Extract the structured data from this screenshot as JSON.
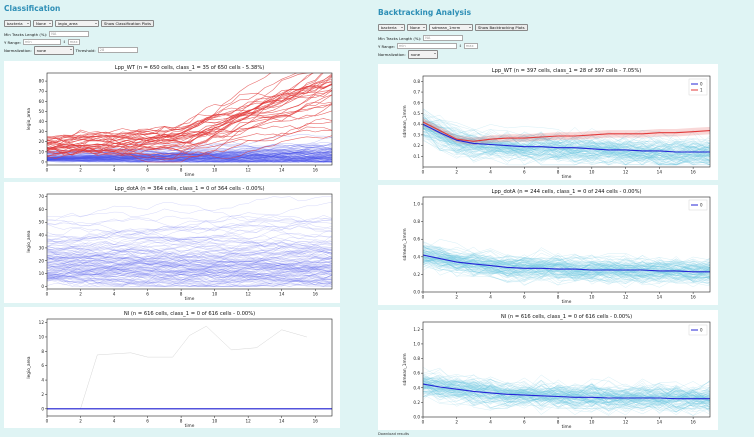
{
  "colors": {
    "background": "#dff4f4",
    "title": "#2e8fb6",
    "class0_light": "#4a52e8",
    "class1": "#e23a3a",
    "cyan": "#6cc6e0",
    "mean": "#2222cc"
  },
  "classification": {
    "title": "Classification",
    "selects": [
      "bacteria",
      "None",
      "legio_area"
    ],
    "show_button": "Show Classification Plots",
    "min_tracks_label": "Min Tracks Length (%):",
    "min_tracks_value": "NA",
    "yrange_label": "Y Range:",
    "yrange_min": "min",
    "yrange_max": "max",
    "normalization_label": "Normalization:",
    "normalization_value": "none",
    "threshold_label": "Threshold:",
    "threshold_value": "28"
  },
  "backtracking": {
    "title": "Backtracking Analysis",
    "selects": [
      "bacteria",
      "None",
      "sdmean_1mrm"
    ],
    "show_button": "Show Backtracking Plots",
    "min_tracks_label": "Min Tracks Length (%):",
    "min_tracks_value": "NA",
    "yrange_label": "Y Range:",
    "yrange_min": "min",
    "yrange_max": "max",
    "normalization_label": "Normalization:",
    "normalization_value": "none",
    "footer": "Download results"
  },
  "chart_data": [
    {
      "type": "line",
      "title": "Lpp_WT (n = 650 cells, class_1 = 35 of 650 cells - 5.38%)",
      "xlabel": "time",
      "ylabel": "legio_area",
      "xlim": [
        0,
        17
      ],
      "ylim": [
        -3,
        88
      ],
      "xticks": [
        0,
        2,
        4,
        6,
        8,
        10,
        12,
        14,
        16
      ],
      "yticks": [
        0,
        10,
        20,
        30,
        40,
        50,
        60,
        70,
        80
      ],
      "series": [
        {
          "name": "class_0",
          "count": 615
        },
        {
          "name": "class_1",
          "count": 35
        }
      ]
    },
    {
      "type": "line",
      "title": "Lpp_dotA (n = 364 cells, class_1 = 0 of 364 cells - 0.00%)",
      "xlabel": "time",
      "ylabel": "legio_area",
      "xlim": [
        0,
        17
      ],
      "ylim": [
        -2,
        72
      ],
      "xticks": [
        0,
        2,
        4,
        6,
        8,
        10,
        12,
        14,
        16
      ],
      "yticks": [
        0,
        10,
        20,
        30,
        40,
        50,
        60,
        70
      ],
      "series": [
        {
          "name": "class_0",
          "count": 364
        }
      ]
    },
    {
      "type": "line",
      "title": "NI (n = 616 cells, class_1 = 0 of 616 cells - 0.00%)",
      "xlabel": "time",
      "ylabel": "legio_area",
      "xlim": [
        0,
        17
      ],
      "ylim": [
        -1,
        12.5
      ],
      "xticks": [
        0,
        2,
        4,
        6,
        8,
        10,
        12,
        14,
        16
      ],
      "yticks": [
        0,
        2,
        4,
        6,
        8,
        10,
        12
      ],
      "series": [
        {
          "name": "class_0",
          "count": 616
        }
      ],
      "outlier": {
        "x": [
          2,
          3,
          5,
          6,
          7.5,
          8.5,
          9.5,
          11,
          12.5,
          14,
          15.5
        ],
        "y": [
          0,
          7.5,
          7.8,
          7.2,
          7.2,
          10.2,
          11.5,
          8.2,
          8.5,
          11,
          10
        ]
      }
    },
    {
      "type": "line",
      "title": "Lpp_WT (n = 397 cells, class_1 = 28 of 397 cells - 7.05%)",
      "xlabel": "time",
      "ylabel": "sdmean_1mrm",
      "xlim": [
        0,
        17
      ],
      "ylim": [
        0,
        0.85
      ],
      "xticks": [
        0,
        2,
        4,
        6,
        8,
        10,
        12,
        14,
        16
      ],
      "yticks": [
        0.1,
        0.2,
        0.3,
        0.4,
        0.5,
        0.6,
        0.7,
        0.8
      ],
      "legend": [
        "0",
        "1"
      ],
      "series": [
        {
          "name": "0",
          "x": [
            0,
            1,
            2,
            3,
            4,
            5,
            6,
            7,
            8,
            9,
            10,
            11,
            12,
            13,
            14,
            15,
            16,
            17
          ],
          "y": [
            0.4,
            0.32,
            0.25,
            0.22,
            0.21,
            0.2,
            0.19,
            0.19,
            0.18,
            0.18,
            0.17,
            0.16,
            0.16,
            0.15,
            0.15,
            0.14,
            0.14,
            0.14
          ]
        },
        {
          "name": "1",
          "x": [
            0,
            1,
            2,
            3,
            4,
            5,
            6,
            7,
            8,
            9,
            10,
            11,
            12,
            13,
            14,
            15,
            16,
            17
          ],
          "y": [
            0.42,
            0.34,
            0.26,
            0.24,
            0.26,
            0.27,
            0.27,
            0.28,
            0.29,
            0.29,
            0.3,
            0.31,
            0.31,
            0.31,
            0.32,
            0.32,
            0.33,
            0.34
          ]
        }
      ]
    },
    {
      "type": "line",
      "title": "Lpp_dotA (n = 244 cells, class_1 = 0 of 244 cells - 0.00%)",
      "xlabel": "time",
      "ylabel": "sdmean_1mrm",
      "xlim": [
        0,
        17
      ],
      "ylim": [
        0,
        1.08
      ],
      "xticks": [
        0,
        2,
        4,
        6,
        8,
        10,
        12,
        14,
        16
      ],
      "yticks": [
        0.0,
        0.2,
        0.4,
        0.6,
        0.8,
        1.0
      ],
      "legend": [
        "0"
      ],
      "series": [
        {
          "name": "0",
          "x": [
            0,
            1,
            2,
            3,
            4,
            5,
            6,
            7,
            8,
            9,
            10,
            11,
            12,
            13,
            14,
            15,
            16,
            17
          ],
          "y": [
            0.42,
            0.38,
            0.34,
            0.32,
            0.3,
            0.28,
            0.27,
            0.27,
            0.26,
            0.26,
            0.25,
            0.25,
            0.25,
            0.25,
            0.24,
            0.24,
            0.23,
            0.23
          ]
        }
      ]
    },
    {
      "type": "line",
      "title": "NI (n = 616 cells, class_1 = 0 of 616 cells - 0.00%)",
      "xlabel": "time",
      "ylabel": "sdmean_1mrm",
      "xlim": [
        0,
        17
      ],
      "ylim": [
        0,
        1.3
      ],
      "xticks": [
        0,
        2,
        4,
        6,
        8,
        10,
        12,
        14,
        16
      ],
      "yticks": [
        0.0,
        0.2,
        0.4,
        0.6,
        0.8,
        1.0,
        1.2
      ],
      "legend": [
        "0"
      ],
      "series": [
        {
          "name": "0",
          "x": [
            0,
            1,
            2,
            3,
            4,
            5,
            6,
            7,
            8,
            9,
            10,
            11,
            12,
            13,
            14,
            15,
            16,
            17
          ],
          "y": [
            0.45,
            0.41,
            0.38,
            0.35,
            0.33,
            0.31,
            0.3,
            0.29,
            0.28,
            0.27,
            0.27,
            0.26,
            0.26,
            0.26,
            0.26,
            0.25,
            0.25,
            0.25
          ]
        }
      ]
    }
  ]
}
